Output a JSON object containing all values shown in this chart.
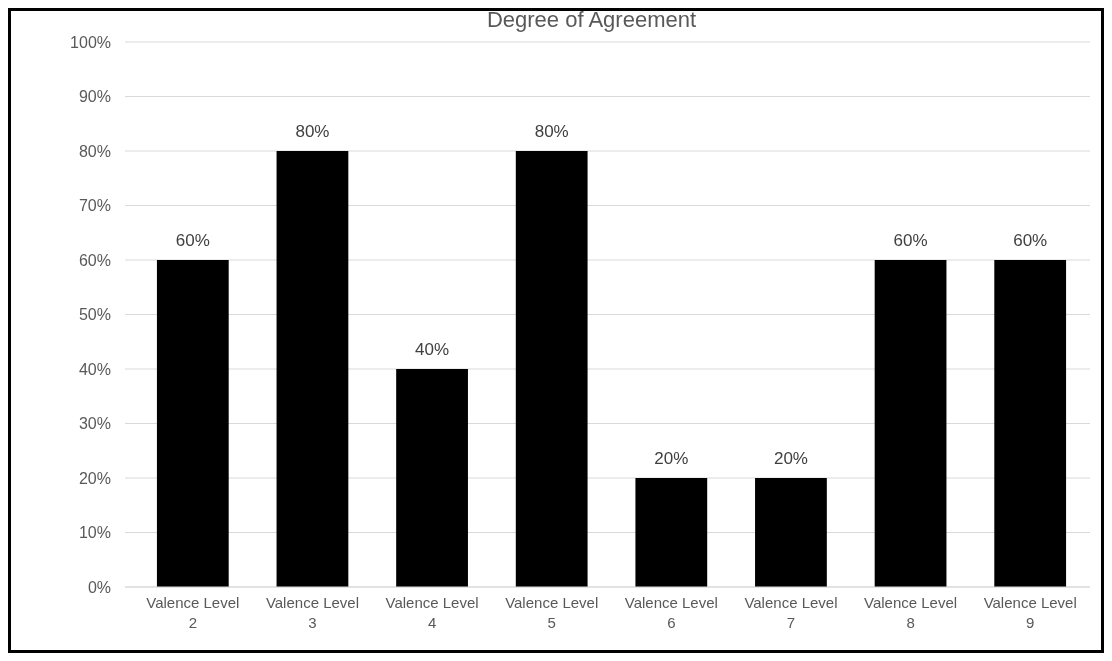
{
  "chart_data": {
    "type": "bar",
    "title": "Degree of Agreement",
    "categories": [
      "Valence Level 2",
      "Valence Level 3",
      "Valence Level 4",
      "Valence Level 5",
      "Valence Level 6",
      "Valence Level 7",
      "Valence Level 8",
      "Valence Level 9"
    ],
    "values": [
      60,
      80,
      40,
      80,
      20,
      20,
      60,
      60
    ],
    "value_labels": [
      "60%",
      "80%",
      "40%",
      "80%",
      "20%",
      "20%",
      "60%",
      "60%"
    ],
    "color": "#000000",
    "ylim": [
      0,
      100
    ],
    "yticks": [
      {
        "value": 0,
        "label": "0%"
      },
      {
        "value": 10,
        "label": "10%"
      },
      {
        "value": 20,
        "label": "20%"
      },
      {
        "value": 30,
        "label": "30%"
      },
      {
        "value": 40,
        "label": "40%"
      },
      {
        "value": 50,
        "label": "50%"
      },
      {
        "value": 60,
        "label": "60%"
      },
      {
        "value": 70,
        "label": "70%"
      },
      {
        "value": 80,
        "label": "80%"
      },
      {
        "value": 90,
        "label": "90%"
      },
      {
        "value": 100,
        "label": "100%"
      }
    ],
    "grid": "y"
  }
}
